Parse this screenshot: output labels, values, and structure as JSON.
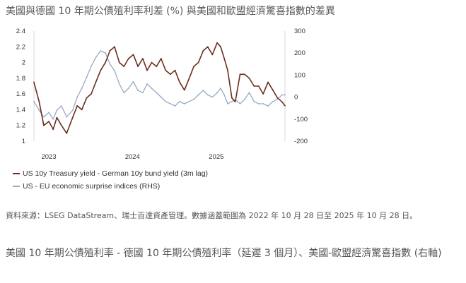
{
  "title": "美國與德國 10 年期公債殖利率利差 (%) 與美國和歐盟經濟驚喜指數的差異",
  "legend": {
    "spread": "US 10y Treasury yield - German 10y bund yield (3m lag)",
    "surprise": "US - EU economic surprise indices (RHS)"
  },
  "source": "資料來源：LSEG DataStream、瑞士百達資產管理。數據涵蓋範圍為 2022 年 10 月 28 日至 2025 年 10 月 28 日。",
  "caption": "美國 10 年期公債殖利率 - 德國 10 年期公債殖利率（延遲 3 個月）、美國-歐盟經濟驚喜指數 (右軸)",
  "chart_data": {
    "type": "line",
    "x_ticks": [
      "2023",
      "2024",
      "2025"
    ],
    "x_tick_dates": [
      "2023-01-01",
      "2024-01-01",
      "2025-01-01"
    ],
    "xlim": [
      "2022-10-28",
      "2025-10-28"
    ],
    "y_left": {
      "ticks": [
        "1",
        "1.2",
        "1.4",
        "1.6",
        "1.8",
        "2",
        "2.2",
        "2.4"
      ],
      "lim": [
        1,
        2.4
      ]
    },
    "y_right": {
      "ticks": [
        "-200",
        "-100",
        "0",
        "100",
        "200",
        "300"
      ],
      "lim": [
        -200,
        300
      ]
    },
    "grid": false,
    "legend_position": "bottom-left",
    "colors": {
      "spread": "#6b2e1f",
      "surprise": "#98aac4"
    },
    "series": [
      {
        "name": "US 10y Treasury yield - German 10y bund yield (3m lag)",
        "axis": "left",
        "x": [
          "2022-10-28",
          "2022-11-20",
          "2022-12-10",
          "2023-01-01",
          "2023-01-20",
          "2023-02-05",
          "2023-02-25",
          "2023-03-20",
          "2023-04-15",
          "2023-05-05",
          "2023-05-25",
          "2023-06-15",
          "2023-07-05",
          "2023-07-25",
          "2023-08-15",
          "2023-09-05",
          "2023-09-25",
          "2023-10-15",
          "2023-11-05",
          "2023-11-25",
          "2023-12-15",
          "2024-01-05",
          "2024-01-25",
          "2024-02-15",
          "2024-03-05",
          "2024-03-25",
          "2024-04-15",
          "2024-05-05",
          "2024-05-25",
          "2024-06-15",
          "2024-07-05",
          "2024-07-25",
          "2024-08-15",
          "2024-09-05",
          "2024-09-25",
          "2024-10-15",
          "2024-11-05",
          "2024-11-25",
          "2024-12-15",
          "2025-01-05",
          "2025-01-20",
          "2025-02-05",
          "2025-02-20",
          "2025-03-10",
          "2025-03-25",
          "2025-04-15",
          "2025-05-05",
          "2025-05-25",
          "2025-06-15",
          "2025-07-05",
          "2025-07-25",
          "2025-08-15",
          "2025-09-05",
          "2025-09-25",
          "2025-10-15",
          "2025-10-28"
        ],
        "y": [
          1.75,
          1.5,
          1.2,
          1.25,
          1.15,
          1.3,
          1.2,
          1.1,
          1.3,
          1.45,
          1.4,
          1.55,
          1.6,
          1.75,
          1.9,
          2.0,
          2.15,
          2.2,
          2.0,
          1.95,
          2.05,
          2.1,
          1.95,
          2.05,
          1.9,
          2.0,
          1.95,
          2.05,
          1.9,
          1.85,
          1.9,
          1.75,
          1.65,
          1.8,
          1.95,
          2.0,
          2.15,
          2.2,
          2.1,
          2.25,
          2.2,
          2.05,
          1.9,
          1.55,
          1.5,
          1.85,
          1.85,
          1.8,
          1.7,
          1.7,
          1.6,
          1.75,
          1.65,
          1.55,
          1.5,
          1.45
        ]
      },
      {
        "name": "US - EU economic surprise indices (RHS)",
        "axis": "right",
        "x": [
          "2022-10-28",
          "2022-11-20",
          "2022-12-10",
          "2023-01-01",
          "2023-01-20",
          "2023-02-05",
          "2023-02-25",
          "2023-03-20",
          "2023-04-15",
          "2023-05-05",
          "2023-05-25",
          "2023-06-15",
          "2023-07-05",
          "2023-07-25",
          "2023-08-15",
          "2023-09-05",
          "2023-09-25",
          "2023-10-15",
          "2023-11-05",
          "2023-11-25",
          "2023-12-15",
          "2024-01-05",
          "2024-01-25",
          "2024-02-15",
          "2024-03-05",
          "2024-03-25",
          "2024-04-15",
          "2024-05-05",
          "2024-05-25",
          "2024-06-15",
          "2024-07-05",
          "2024-07-25",
          "2024-08-15",
          "2024-09-05",
          "2024-09-25",
          "2024-10-15",
          "2024-11-05",
          "2024-11-25",
          "2024-12-15",
          "2025-01-05",
          "2025-01-20",
          "2025-02-05",
          "2025-02-20",
          "2025-03-10",
          "2025-03-25",
          "2025-04-15",
          "2025-05-05",
          "2025-05-25",
          "2025-06-15",
          "2025-07-05",
          "2025-07-25",
          "2025-08-15",
          "2025-09-05",
          "2025-09-25",
          "2025-10-15",
          "2025-10-28"
        ],
        "y": [
          -20,
          -60,
          -90,
          -70,
          -100,
          -60,
          -40,
          -90,
          -60,
          0,
          40,
          90,
          140,
          180,
          210,
          200,
          150,
          120,
          60,
          20,
          40,
          70,
          30,
          20,
          60,
          40,
          20,
          0,
          -20,
          -30,
          -40,
          -20,
          -30,
          -20,
          -10,
          10,
          30,
          10,
          0,
          20,
          40,
          10,
          -30,
          -20,
          -10,
          -30,
          -10,
          20,
          -20,
          -30,
          -30,
          -40,
          -20,
          -10,
          10,
          10
        ]
      }
    ]
  }
}
